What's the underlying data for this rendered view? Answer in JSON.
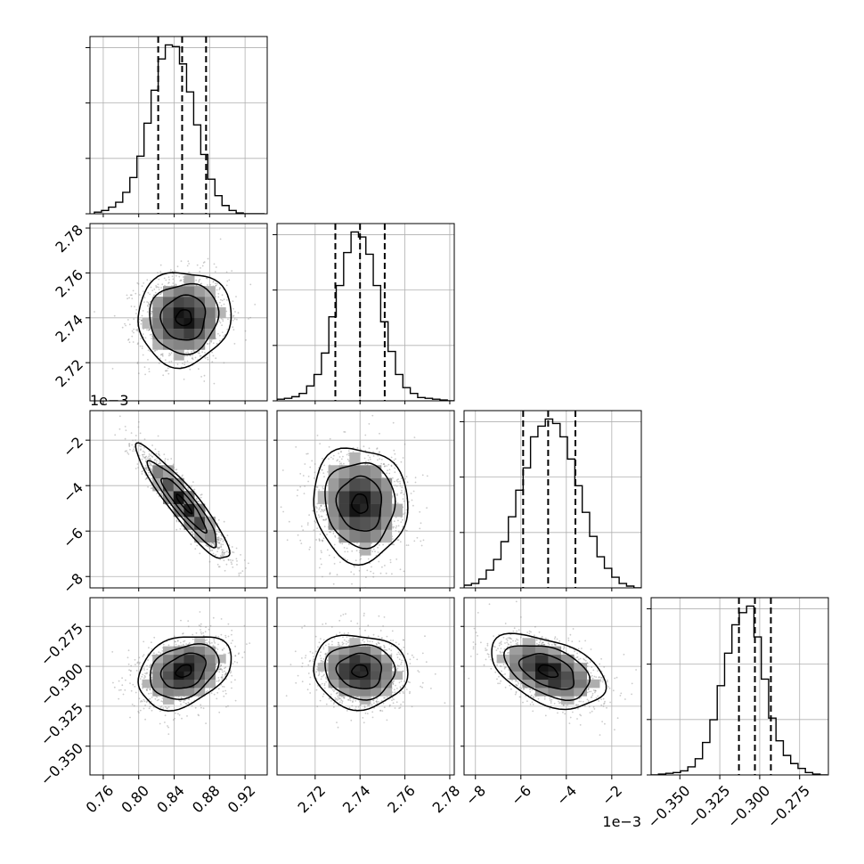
{
  "chart_data": {
    "type": "corner",
    "grid": true,
    "parameters": [
      {
        "range": [
          0.745,
          0.945
        ],
        "ticks": [
          0.76,
          0.8,
          0.84,
          0.88,
          0.92
        ],
        "tick_labels": [
          "0.76",
          "0.80",
          "0.84",
          "0.88",
          "0.92"
        ],
        "offset_label": ""
      },
      {
        "range": [
          2.703,
          2.782
        ],
        "ticks": [
          2.72,
          2.74,
          2.76,
          2.78
        ],
        "tick_labels": [
          "2.72",
          "2.74",
          "2.76",
          "2.78"
        ],
        "offset_label": ""
      },
      {
        "range": [
          -8.5,
          -0.7
        ],
        "ticks": [
          -8,
          -6,
          -4,
          -2
        ],
        "tick_labels": [
          "−8",
          "−6",
          "−4",
          "−2"
        ],
        "offset_label": "1e−3"
      },
      {
        "range": [
          -0.368,
          -0.257
        ],
        "ticks": [
          -0.35,
          -0.325,
          -0.3,
          -0.275
        ],
        "tick_labels": [
          "−0.350",
          "−0.325",
          "−0.300",
          "−0.275"
        ],
        "offset_label": ""
      }
    ],
    "quantiles": [
      [
        0.822,
        0.849,
        0.876
      ],
      [
        2.729,
        2.74,
        2.751
      ],
      [
        -5.9,
        -4.8,
        -3.6
      ],
      [
        -0.313,
        -0.303,
        -0.293
      ]
    ],
    "histograms": [
      {
        "bins": [
          0.75,
          0.758,
          0.766,
          0.774,
          0.782,
          0.79,
          0.798,
          0.806,
          0.814,
          0.822,
          0.83,
          0.838,
          0.846,
          0.854,
          0.862,
          0.87,
          0.878,
          0.886,
          0.894,
          0.902,
          0.91,
          0.918,
          0.926,
          0.934,
          0.942
        ],
        "counts": [
          2,
          4,
          8,
          14,
          26,
          44,
          70,
          110,
          150,
          188,
          205,
          203,
          182,
          148,
          108,
          72,
          42,
          22,
          10,
          4,
          1,
          0,
          0,
          0
        ]
      },
      {
        "bins": [
          2.703,
          2.7063,
          2.7096,
          2.7129,
          2.7162,
          2.7195,
          2.7228,
          2.7261,
          2.7294,
          2.7327,
          2.736,
          2.7393,
          2.7426,
          2.7459,
          2.7492,
          2.7525,
          2.7558,
          2.7591,
          2.7624,
          2.7657,
          2.769,
          2.7723,
          2.7756,
          2.7789,
          2.7822
        ],
        "counts": [
          2,
          3,
          5,
          9,
          18,
          32,
          58,
          102,
          140,
          180,
          205,
          199,
          178,
          140,
          96,
          60,
          32,
          16,
          9,
          4,
          3,
          2,
          1,
          0
        ]
      },
      {
        "bins": [
          -8.5,
          -8.175,
          -7.85,
          -7.525,
          -7.2,
          -6.875,
          -6.55,
          -6.225,
          -5.9,
          -5.575,
          -5.25,
          -4.925,
          -4.6,
          -4.275,
          -3.95,
          -3.625,
          -3.3,
          -2.975,
          -2.65,
          -2.325,
          -2.0,
          -1.675,
          -1.35,
          -1.025,
          -0.7
        ],
        "counts": [
          3,
          5,
          10,
          20,
          32,
          52,
          80,
          110,
          135,
          170,
          182,
          190,
          185,
          170,
          145,
          115,
          85,
          58,
          35,
          22,
          12,
          5,
          2,
          0
        ]
      },
      {
        "bins": [
          -0.368,
          -0.3634,
          -0.3588,
          -0.3542,
          -0.3496,
          -0.345,
          -0.3404,
          -0.3358,
          -0.3312,
          -0.3266,
          -0.322,
          -0.3174,
          -0.3128,
          -0.3082,
          -0.3036,
          -0.299,
          -0.2944,
          -0.2898,
          -0.2852,
          -0.2806,
          -0.276,
          -0.2714,
          -0.2668,
          -0.2622,
          -0.2576
        ],
        "counts": [
          0,
          1,
          2,
          3,
          5,
          10,
          20,
          40,
          68,
          110,
          150,
          185,
          200,
          208,
          170,
          118,
          70,
          42,
          24,
          14,
          8,
          3,
          1,
          0
        ]
      }
    ],
    "pairs": [
      {
        "i": 0,
        "j": 1,
        "mean": [
          0.851,
          2.74
        ],
        "sd": [
          0.025,
          0.01
        ],
        "corr": 0.05
      },
      {
        "i": 0,
        "j": 2,
        "mean": [
          0.851,
          -4.8
        ],
        "sd": [
          0.025,
          1.2
        ],
        "corr": -0.92
      },
      {
        "i": 1,
        "j": 2,
        "mean": [
          2.74,
          -4.8
        ],
        "sd": [
          0.01,
          1.2
        ],
        "corr": -0.05
      },
      {
        "i": 0,
        "j": 3,
        "mean": [
          0.851,
          -0.303
        ],
        "sd": [
          0.025,
          0.011
        ],
        "corr": 0.3
      },
      {
        "i": 1,
        "j": 3,
        "mean": [
          2.74,
          -0.303
        ],
        "sd": [
          0.01,
          0.011
        ],
        "corr": -0.05
      },
      {
        "i": 2,
        "j": 3,
        "mean": [
          -4.8,
          -0.303
        ],
        "sd": [
          1.2,
          0.011
        ],
        "corr": -0.45
      }
    ],
    "colors": {
      "line": "#000000",
      "grid": "#b0b0b0",
      "scatter": "#8c8c8c"
    }
  }
}
